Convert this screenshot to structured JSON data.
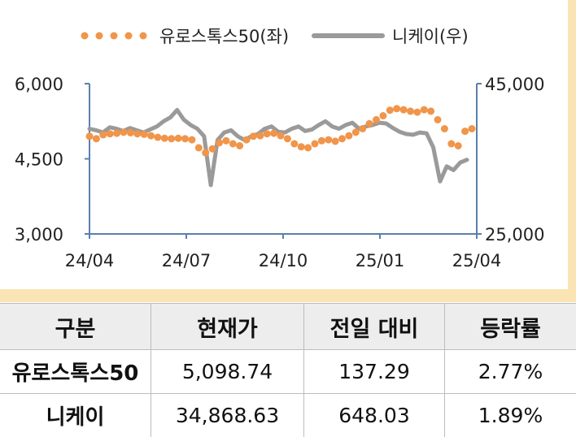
{
  "chart_data": {
    "type": "line",
    "legend_position": "top",
    "grid": false,
    "x_ticks": [
      "24/04",
      "24/07",
      "24/10",
      "25/01",
      "25/04"
    ],
    "y_left": {
      "ticks": [
        "6,000",
        "4,500",
        "3,000"
      ],
      "range": [
        3000,
        6000
      ]
    },
    "y_right": {
      "ticks": [
        "45,000",
        "25,000"
      ],
      "range": [
        25000,
        45000
      ]
    },
    "series": [
      {
        "name": "유로스톡스50(좌)",
        "axis": "left",
        "style": "dotted",
        "color": "#f0954a",
        "values": [
          4950,
          4900,
          4980,
          5000,
          5010,
          5030,
          5020,
          5000,
          4990,
          4960,
          4930,
          4910,
          4900,
          4910,
          4900,
          4880,
          4720,
          4620,
          4700,
          4820,
          4860,
          4800,
          4760,
          4880,
          4950,
          4960,
          5000,
          5010,
          4960,
          4900,
          4800,
          4740,
          4720,
          4800,
          4860,
          4880,
          4850,
          4900,
          4960,
          5030,
          5100,
          5200,
          5280,
          5360,
          5470,
          5500,
          5480,
          5450,
          5430,
          5480,
          5450,
          5280,
          5100,
          4800,
          4760,
          5050,
          5100
        ]
      },
      {
        "name": "니케이(우)",
        "axis": "right",
        "style": "solid",
        "color": "#9a9a9a",
        "values": [
          39000,
          38800,
          38500,
          39200,
          39000,
          38700,
          39100,
          38800,
          38500,
          38900,
          39300,
          40000,
          40500,
          41500,
          40200,
          39500,
          39000,
          38000,
          31500,
          37500,
          38500,
          38800,
          38000,
          37500,
          38000,
          38300,
          39000,
          39300,
          38600,
          38500,
          39000,
          39300,
          38700,
          38900,
          39500,
          40000,
          39300,
          39000,
          39500,
          39800,
          39000,
          39300,
          39500,
          39800,
          39700,
          39100,
          38600,
          38300,
          38200,
          38500,
          38400,
          36500,
          32000,
          34000,
          33500,
          34500,
          34868
        ]
      }
    ]
  },
  "table": {
    "headers": [
      "구분",
      "현재가",
      "전일 대비",
      "등락률"
    ],
    "rows": [
      [
        "유로스톡스50",
        "5,098.74",
        "137.29",
        "2.77%"
      ],
      [
        "니케이",
        "34,868.63",
        "648.03",
        "1.89%"
      ]
    ]
  }
}
